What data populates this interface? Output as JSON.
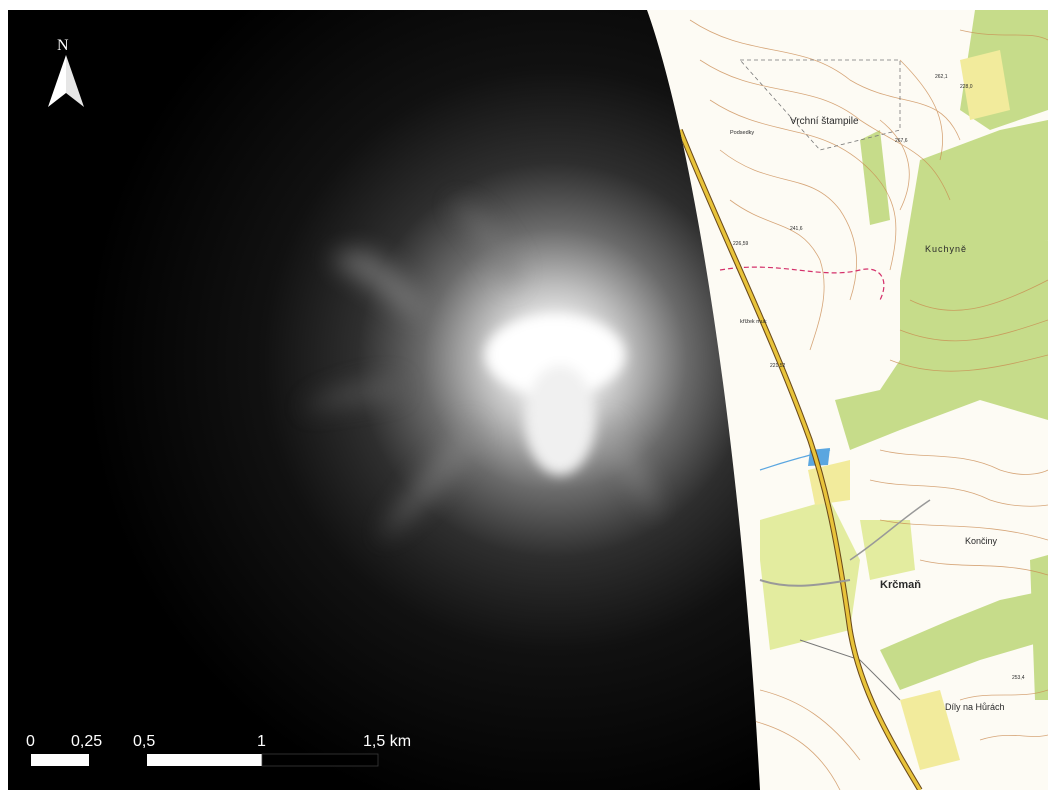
{
  "north_arrow": {
    "letter": "N",
    "icon": "north-arrow-icon"
  },
  "scale_bar": {
    "labels": [
      "0",
      "0,25",
      "0,5",
      "1",
      "1,5 km"
    ],
    "segments_km": [
      [
        0,
        0.25
      ],
      [
        0.5,
        1
      ],
      [
        1,
        1.5
      ]
    ]
  },
  "topo_labels": {
    "vrchni_stampile": "Vrchní štampile",
    "kuchyne": "Kuchyně",
    "kremar": "Krčmaň",
    "konciny": "Končiny",
    "dily_na_hurach": "Díly na Hůrách",
    "podsedky": "Podsedky",
    "muk": "křížek muk",
    "spot_1": "262,1",
    "spot_2": "267,6",
    "spot_3": "241,6",
    "spot_4": "253,4",
    "spot_5": "226,59",
    "spot_6": "221,52",
    "spot_7": "228,0"
  },
  "colors": {
    "dem_peak": "#ffffff",
    "dem_base": "#000000",
    "forest": "#c6dc8a",
    "field": "#f2eb9c",
    "contour": "#c9894f",
    "road": "#d9b02a",
    "boundary": "#d4306a",
    "water": "#5aa6e0"
  }
}
